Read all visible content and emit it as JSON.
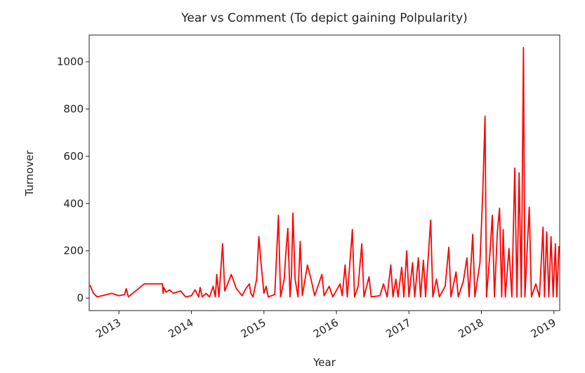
{
  "chart_data": {
    "type": "line",
    "title": "Year vs Comment (To depict gaining Polpularity)",
    "x_label": "Year",
    "y_label": "Turnover",
    "x": [
      2012.6,
      2012.65,
      2012.7,
      2012.9,
      2013.0,
      2013.08,
      2013.1,
      2013.13,
      2013.35,
      2013.6,
      2013.61,
      2013.62,
      2013.65,
      2013.7,
      2013.75,
      2013.85,
      2013.92,
      2014.0,
      2014.05,
      2014.1,
      2014.12,
      2014.15,
      2014.2,
      2014.25,
      2014.3,
      2014.33,
      2014.35,
      2014.38,
      2014.43,
      2014.46,
      2014.5,
      2014.55,
      2014.62,
      2014.7,
      2014.75,
      2014.8,
      2014.82,
      2014.85,
      2014.9,
      2014.93,
      2014.96,
      2015.0,
      2015.03,
      2015.06,
      2015.15,
      2015.2,
      2015.23,
      2015.28,
      2015.3,
      2015.33,
      2015.36,
      2015.38,
      2015.4,
      2015.43,
      2015.47,
      2015.5,
      2015.53,
      2015.6,
      2015.65,
      2015.7,
      2015.8,
      2015.83,
      2015.9,
      2015.95,
      2016.05,
      2016.08,
      2016.12,
      2016.15,
      2016.22,
      2016.25,
      2016.3,
      2016.35,
      2016.38,
      2016.45,
      2016.48,
      2016.6,
      2016.65,
      2016.7,
      2016.75,
      2016.78,
      2016.82,
      2016.85,
      2016.9,
      2016.93,
      2016.97,
      2017.0,
      2017.05,
      2017.08,
      2017.13,
      2017.16,
      2017.2,
      2017.23,
      2017.3,
      2017.33,
      2017.38,
      2017.42,
      2017.5,
      2017.55,
      2017.58,
      2017.65,
      2017.68,
      2017.75,
      2017.8,
      2017.83,
      2017.88,
      2017.91,
      2017.98,
      2018.02,
      2018.05,
      2018.07,
      2018.12,
      2018.15,
      2018.18,
      2018.22,
      2018.25,
      2018.28,
      2018.3,
      2018.33,
      2018.38,
      2018.42,
      2018.46,
      2018.49,
      2018.52,
      2018.55,
      2018.58,
      2018.6,
      2018.63,
      2018.66,
      2018.69,
      2018.75,
      2018.8,
      2018.85,
      2018.87,
      2018.9,
      2018.93,
      2018.96,
      2018.99,
      2019.02,
      2019.04,
      2019.07
    ],
    "series": [
      {
        "name": "Turnover",
        "color": "#ff0000",
        "values": [
          55,
          20,
          5,
          20,
          10,
          15,
          40,
          5,
          60,
          60,
          20,
          45,
          25,
          35,
          20,
          30,
          5,
          10,
          35,
          5,
          45,
          5,
          20,
          5,
          50,
          5,
          100,
          5,
          230,
          30,
          60,
          100,
          40,
          10,
          40,
          60,
          20,
          5,
          80,
          260,
          150,
          20,
          50,
          5,
          15,
          350,
          5,
          80,
          180,
          295,
          5,
          100,
          360,
          80,
          5,
          240,
          10,
          140,
          80,
          10,
          100,
          10,
          50,
          5,
          60,
          10,
          140,
          5,
          290,
          5,
          50,
          230,
          5,
          90,
          5,
          10,
          60,
          5,
          140,
          5,
          80,
          5,
          130,
          5,
          200,
          5,
          150,
          5,
          170,
          5,
          160,
          5,
          330,
          5,
          80,
          5,
          50,
          215,
          5,
          110,
          5,
          70,
          170,
          5,
          270,
          5,
          150,
          460,
          770,
          5,
          200,
          350,
          5,
          280,
          380,
          5,
          290,
          5,
          210,
          5,
          550,
          5,
          530,
          5,
          1060,
          5,
          200,
          385,
          5,
          60,
          5,
          300,
          5,
          280,
          5,
          260,
          5,
          230,
          5,
          220
        ]
      }
    ],
    "xlim": [
      2012.59,
      2019.08
    ],
    "xticks": [
      2013,
      2014,
      2015,
      2016,
      2017,
      2018,
      2019
    ],
    "ylim": [
      -53,
      1113
    ],
    "yticks": [
      0,
      200,
      400,
      600,
      800,
      1000
    ]
  }
}
